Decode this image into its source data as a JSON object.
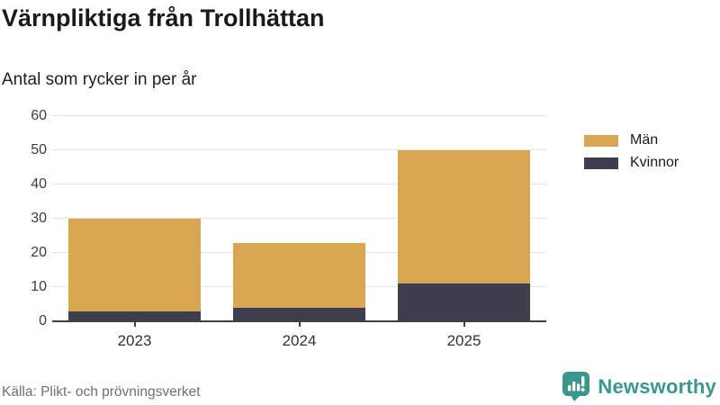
{
  "header": {
    "title": "Värnpliktiga från Trollhättan",
    "subtitle": "Antal som rycker in per år"
  },
  "legend": {
    "items": [
      {
        "label": "Män",
        "color": "#d9a751"
      },
      {
        "label": "Kvinnor",
        "color": "#3f3e4e"
      }
    ]
  },
  "footer": {
    "source": "Källa: Plikt- och prövningsverket",
    "brand": "Newsworthy"
  },
  "colors": {
    "men": "#d9a751",
    "women": "#3f3e4e",
    "gridline": "#e3e3e3",
    "axis": "#3f3e4e",
    "brand_teal": "#3b978d"
  },
  "chart_data": {
    "type": "bar",
    "stacked": true,
    "title": "Värnpliktiga från Trollhättan",
    "subtitle": "Antal som rycker in per år",
    "categories": [
      "2023",
      "2024",
      "2025"
    ],
    "series": [
      {
        "name": "Män",
        "color": "#d9a751",
        "values": [
          27,
          19,
          39
        ]
      },
      {
        "name": "Kvinnor",
        "color": "#3f3e4e",
        "values": [
          3,
          4,
          11
        ]
      }
    ],
    "stack_totals": [
      30,
      23,
      50
    ],
    "xlabel": "",
    "ylabel": "",
    "ylim": [
      0,
      60
    ],
    "yticks": [
      0,
      10,
      20,
      30,
      40,
      50,
      60
    ],
    "grid": true,
    "legend_position": "right"
  }
}
